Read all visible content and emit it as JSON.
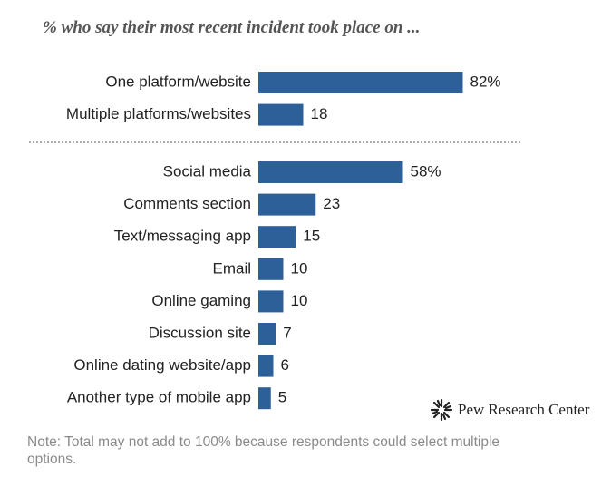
{
  "title": "% who say their most recent incident took place on ...",
  "chart_data": [
    {
      "type": "bar",
      "orientation": "horizontal",
      "color": "#2d5f99",
      "categories": [
        "One platform/website",
        "Multiple platforms/websites"
      ],
      "values": [
        82,
        18
      ],
      "value_labels": [
        "82%",
        "18"
      ]
    },
    {
      "type": "bar",
      "orientation": "horizontal",
      "color": "#2d5f99",
      "categories": [
        "Social media",
        "Comments section",
        "Text/messaging app",
        "Email",
        "Online gaming",
        "Discussion site",
        "Online dating website/app",
        "Another type of mobile app"
      ],
      "values": [
        58,
        23,
        15,
        10,
        10,
        7,
        6,
        5
      ],
      "value_labels": [
        "58%",
        "23",
        "15",
        "10",
        "10",
        "7",
        "6",
        "5"
      ]
    }
  ],
  "note": "Note: Total may not add to 100% because respondents could select multiple options.",
  "source": "Pew Research Center"
}
